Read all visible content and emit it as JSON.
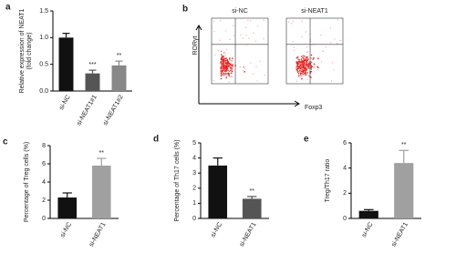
{
  "chart_data": [
    {
      "type": "bar",
      "label": "a",
      "ylabel": [
        "Relative expression of NEAT1",
        "(fold change)"
      ],
      "categories": [
        "si-NC",
        "si-NEAT1#1",
        "si-NEAT1#2"
      ],
      "values": [
        1.0,
        0.33,
        0.48
      ],
      "errors": [
        0.08,
        0.06,
        0.08
      ],
      "colors": [
        "#111111",
        "#555555",
        "#888888"
      ],
      "annotations": [
        {
          "category": "si-NEAT1#1",
          "text": "***"
        },
        {
          "category": "si-NEAT1#2",
          "text": "**"
        }
      ],
      "ylim": [
        0,
        1.5
      ],
      "yticks": [
        {
          "value": 0,
          "label": "0.0"
        },
        0.5,
        {
          "value": 1,
          "label": "1.0"
        },
        1.5
      ]
    },
    {
      "type": "flow",
      "label": "b",
      "panels": [
        "si-NC",
        "si-NEAT1"
      ],
      "xlabel": "Foxp3",
      "ylabel": "RORγt"
    },
    {
      "type": "bar",
      "label": "c",
      "ylabel": [
        "Percentage of Treg cells (%)"
      ],
      "categories": [
        "si-NC",
        "si-NEAT1"
      ],
      "values": [
        2.3,
        5.8
      ],
      "errors": [
        0.5,
        0.8
      ],
      "colors": [
        "#111111",
        "#a0a0a0"
      ],
      "annotations": [
        {
          "category": "si-NEAT1",
          "text": "**"
        }
      ],
      "ylim": [
        0,
        8
      ],
      "yticks": [
        0,
        2,
        4,
        6,
        8
      ]
    },
    {
      "type": "bar",
      "label": "d",
      "ylabel": [
        "Percentage of Th17 cells (%)"
      ],
      "categories": [
        "si-NC",
        "si-NEAT1"
      ],
      "values": [
        3.5,
        1.3
      ],
      "errors": [
        0.5,
        0.15
      ],
      "colors": [
        "#111111",
        "#555555"
      ],
      "annotations": [
        {
          "category": "si-NEAT1",
          "text": "**"
        }
      ],
      "ylim": [
        0,
        5
      ],
      "yticks": [
        0,
        1,
        2,
        3,
        4,
        5
      ]
    },
    {
      "type": "bar",
      "label": "e",
      "ylabel": [
        "Treg/Th17 ratio"
      ],
      "categories": [
        "si-NC",
        "si-NEAT1"
      ],
      "values": [
        0.6,
        4.4
      ],
      "errors": [
        0.1,
        1.0
      ],
      "colors": [
        "#111111",
        "#a0a0a0"
      ],
      "annotations": [
        {
          "category": "si-NEAT1",
          "text": "**"
        }
      ],
      "ylim": [
        0,
        6
      ],
      "yticks": [
        0,
        2,
        4,
        6
      ]
    }
  ]
}
